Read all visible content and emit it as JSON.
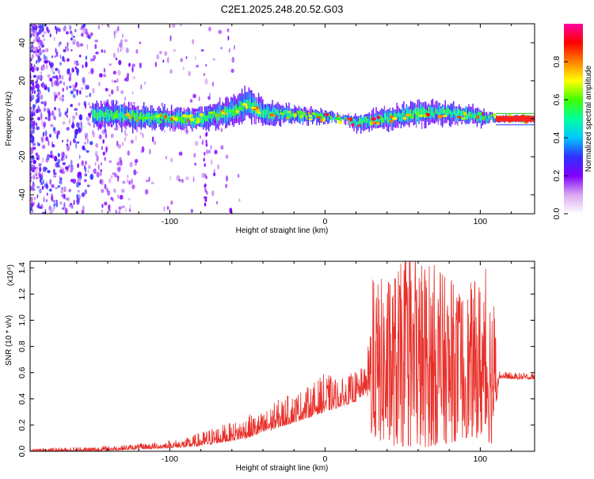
{
  "title": "C2E1.2025.248.20.52.G03",
  "chart_data": [
    {
      "type": "heatmap",
      "panel": "spectrogram",
      "xlabel": "Height of straight line (km)",
      "ylabel": "Frequency (Hz)",
      "xlim": [
        -190,
        135
      ],
      "ylim": [
        -50,
        50
      ],
      "xticks": [
        -100,
        0,
        100
      ],
      "yticks": [
        -40,
        -20,
        0,
        20,
        40
      ],
      "colorbar": {
        "label": "Normalized spectral amplitude",
        "range": [
          0.0,
          1.0
        ],
        "ticks": [
          0.0,
          0.2,
          0.4,
          0.6,
          0.8
        ],
        "colormap": "rainbow",
        "stops": [
          "#ffffff",
          "#d8a8f0",
          "#8000ff",
          "#3030ff",
          "#00c8ff",
          "#00ffa0",
          "#40ff00",
          "#ffff00",
          "#ff8000",
          "#ff0000",
          "#ff00a0"
        ]
      },
      "ridge": {
        "description": "dominant frequency band around 0 Hz",
        "x": [
          -140,
          -120,
          -100,
          -80,
          -60,
          -50,
          -40,
          -20,
          0,
          10,
          20,
          40,
          60,
          80,
          100,
          110,
          135
        ],
        "center_hz": [
          2,
          1,
          0,
          0,
          4,
          8,
          3,
          2,
          1,
          0,
          -2,
          0,
          3,
          3,
          1,
          0,
          0
        ],
        "halfwidth_hz": [
          6,
          6,
          5,
          5,
          7,
          8,
          6,
          4,
          3,
          1,
          4,
          5,
          6,
          5,
          4,
          1,
          1
        ]
      }
    },
    {
      "type": "line",
      "panel": "snr",
      "xlabel": "Height of straight line (km)",
      "ylabel": "SNR (10 * v/v)",
      "scale_label": "(x10⁴)",
      "xlim": [
        -190,
        135
      ],
      "ylim": [
        0.0,
        1.45
      ],
      "xticks": [
        -100,
        0,
        100
      ],
      "yticks": [
        0.0,
        0.2,
        0.4,
        0.6,
        0.8,
        1.0,
        1.2,
        1.4
      ],
      "color": "#e8302a",
      "envelope": {
        "x": [
          -190,
          -170,
          -150,
          -130,
          -110,
          -90,
          -80,
          -70,
          -60,
          -50,
          -40,
          -30,
          -20,
          -10,
          0,
          10,
          20,
          27,
          30,
          40,
          50,
          60,
          70,
          80,
          90,
          100,
          108,
          112,
          120,
          135
        ],
        "low": [
          0.0,
          0.0,
          0.0,
          0.01,
          0.02,
          0.03,
          0.04,
          0.06,
          0.08,
          0.1,
          0.14,
          0.18,
          0.22,
          0.26,
          0.3,
          0.34,
          0.38,
          0.45,
          0.1,
          0.05,
          0.03,
          0.02,
          0.04,
          0.06,
          0.1,
          0.1,
          0.05,
          0.56,
          0.55,
          0.55
        ],
        "high": [
          0.02,
          0.03,
          0.04,
          0.05,
          0.07,
          0.1,
          0.15,
          0.2,
          0.22,
          0.28,
          0.3,
          0.4,
          0.45,
          0.5,
          0.6,
          0.55,
          0.62,
          0.65,
          1.3,
          1.35,
          1.45,
          1.5,
          1.45,
          1.3,
          1.25,
          1.35,
          1.3,
          0.62,
          0.6,
          0.6
        ]
      }
    }
  ]
}
